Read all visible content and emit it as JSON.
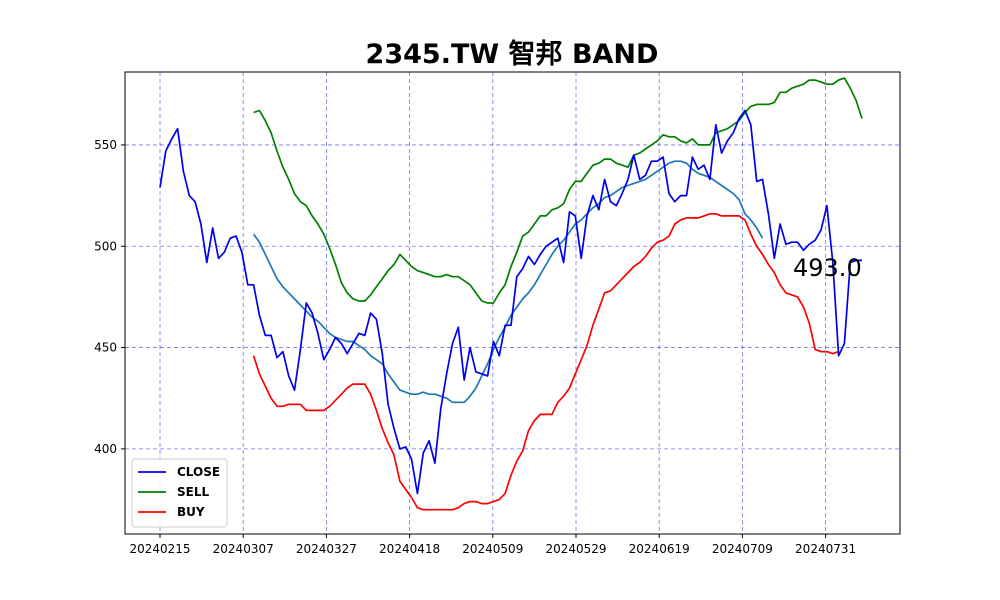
{
  "chart_data": {
    "type": "line",
    "title": "2345.TW 智邦 BAND",
    "xlabel": "",
    "ylabel": "",
    "ylim": [
      358,
      586
    ],
    "x_tick_labels": [
      "20240215",
      "20240307",
      "20240327",
      "20240418",
      "20240509",
      "20240529",
      "20240619",
      "20240709",
      "20240731"
    ],
    "y_ticks": [
      400,
      450,
      500,
      550
    ],
    "grid": true,
    "grid_style": "dashed",
    "legend_position": "lower-left",
    "annotation": "493.0",
    "series": [
      {
        "name": "CLOSE",
        "color": "#0000ee",
        "values": [
          529,
          547,
          553,
          558,
          537,
          525,
          522,
          511,
          492,
          509,
          494,
          497,
          504,
          505,
          497,
          481,
          481,
          466,
          456,
          456,
          445,
          448,
          436,
          429,
          449,
          472,
          467,
          457,
          444,
          449,
          455,
          452,
          447,
          452,
          457,
          456,
          467,
          464,
          447,
          422,
          410,
          400,
          401,
          395,
          378,
          398,
          404,
          393,
          420,
          437,
          452,
          460,
          434,
          450,
          438,
          437,
          436,
          453,
          446,
          461,
          461,
          485,
          489,
          495,
          491,
          496,
          500,
          502,
          504,
          492,
          517,
          515,
          494,
          515,
          525,
          518,
          533,
          522,
          520,
          526,
          533,
          545,
          533,
          535,
          542,
          542,
          544,
          526,
          522,
          525,
          525,
          544,
          538,
          540,
          533,
          560,
          546,
          552,
          556,
          563,
          567,
          560,
          532,
          533,
          516,
          494,
          511,
          501,
          502,
          502,
          498,
          501,
          503,
          508,
          520,
          492,
          446,
          452,
          492,
          493,
          493
        ],
        "start": 0
      },
      {
        "name": "SELL",
        "color": "#008000",
        "values": [
          566,
          567,
          562,
          556,
          547,
          539,
          533,
          526,
          522,
          520,
          515,
          511,
          506,
          499,
          491,
          482,
          477,
          474,
          473,
          473,
          476,
          480,
          484,
          488,
          491,
          496,
          493,
          490,
          488,
          487,
          486,
          485,
          485,
          486,
          485,
          485,
          483,
          481,
          477,
          473,
          472,
          472,
          477,
          481,
          490,
          497,
          505,
          507,
          511,
          515,
          515,
          518,
          519,
          521,
          528,
          532,
          532,
          536,
          540,
          541,
          543,
          543,
          541,
          540,
          539,
          545,
          546,
          548,
          550,
          552,
          555,
          554,
          554,
          552,
          551,
          553,
          550,
          550,
          550,
          556,
          557,
          558,
          560,
          562,
          566,
          569,
          570,
          570,
          570,
          571,
          576,
          576,
          578,
          579,
          580,
          582,
          582,
          581,
          580,
          580,
          582,
          583,
          578,
          572,
          563
        ],
        "start": 16
      },
      {
        "name": "BUY",
        "color": "#ff0000",
        "values": [
          446,
          437,
          431,
          425,
          421,
          421,
          422,
          422,
          422,
          419,
          419,
          419,
          419,
          421,
          424,
          427,
          430,
          432,
          432,
          432,
          427,
          419,
          410,
          403,
          397,
          384,
          380,
          376,
          371,
          370,
          370,
          370,
          370,
          370,
          370,
          371,
          373,
          374,
          374,
          373,
          373,
          374,
          375,
          378,
          387,
          394,
          399,
          409,
          414,
          417,
          417,
          417,
          423,
          426,
          430,
          437,
          444,
          451,
          461,
          469,
          477,
          478,
          481,
          484,
          487,
          490,
          492,
          495,
          499,
          502,
          503,
          505,
          511,
          513,
          514,
          514,
          514,
          515,
          516,
          516,
          515,
          515,
          515,
          515,
          513,
          506,
          500,
          496,
          491,
          487,
          481,
          477,
          476,
          475,
          470,
          462,
          449,
          448,
          448,
          447,
          448
        ],
        "start": 16
      },
      {
        "name": "",
        "color": "#1f77b4",
        "values": [
          506,
          502,
          496,
          490,
          484,
          480,
          477,
          474,
          471,
          468,
          465,
          463,
          460,
          457,
          455,
          454,
          453,
          453,
          451,
          449,
          446,
          444,
          442,
          437,
          433,
          429,
          428,
          427,
          427,
          428,
          427,
          427,
          426,
          425,
          423,
          423,
          423,
          426,
          430,
          436,
          442,
          449,
          455,
          460,
          466,
          470,
          474,
          477,
          481,
          486,
          491,
          496,
          500,
          503,
          507,
          511,
          513,
          516,
          519,
          521,
          524,
          525,
          527,
          529,
          530,
          531,
          532,
          533,
          535,
          537,
          539,
          541,
          542,
          542,
          541,
          538,
          536,
          535,
          534,
          532,
          530,
          528,
          526,
          523,
          516,
          513,
          509,
          504
        ],
        "start": 16
      }
    ]
  }
}
